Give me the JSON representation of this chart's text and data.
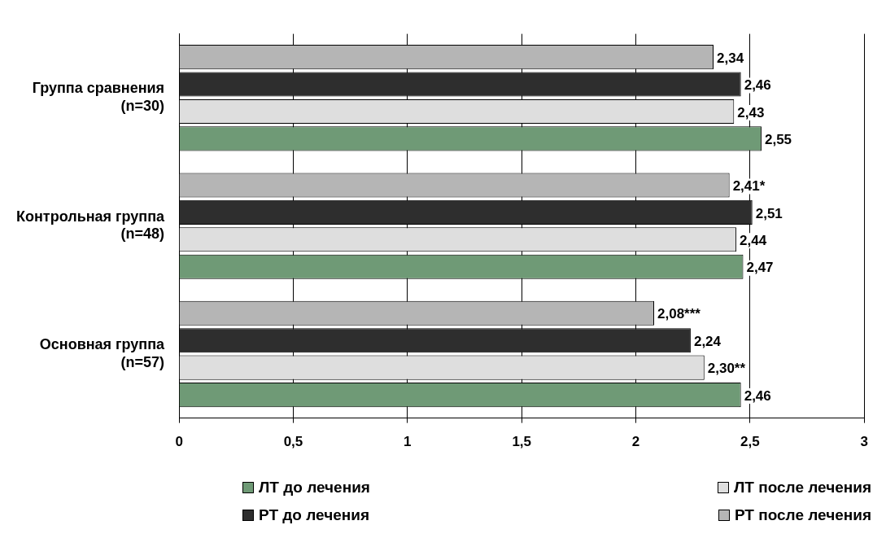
{
  "chart_data": {
    "type": "bar",
    "orientation": "horizontal",
    "categories": [
      "Группа сравнения (n=30)",
      "Контрольная группа (n=48)",
      "Основная группа (n=57)"
    ],
    "series": [
      {
        "name": "ЛТ до лечения",
        "color": "#6f9a76",
        "values": [
          2.55,
          2.47,
          2.46
        ],
        "value_labels": [
          "2,55",
          "2,47",
          "2,46"
        ]
      },
      {
        "name": "ЛТ после лечения",
        "color": "#dedede",
        "values": [
          2.43,
          2.44,
          2.3
        ],
        "value_labels": [
          "2,43",
          "2,44",
          "2,30**"
        ]
      },
      {
        "name": "РТ до лечения",
        "color": "#2e2e2e",
        "values": [
          2.46,
          2.51,
          2.24
        ],
        "value_labels": [
          "2,46",
          "2,51",
          "2,24"
        ]
      },
      {
        "name": "РТ после лечения",
        "color": "#b5b5b5",
        "values": [
          2.34,
          2.41,
          2.08
        ],
        "value_labels": [
          "2,34",
          "2,41*",
          "2,08***"
        ]
      }
    ],
    "xlim": [
      0,
      3
    ],
    "xticks": [
      0,
      {
        "value": 0.5,
        "label": "0,5"
      },
      1,
      {
        "value": 1.5,
        "label": "1,5"
      },
      2,
      {
        "value": 2.5,
        "label": "2,5"
      },
      3
    ],
    "grid": "x",
    "legend": "bottom"
  }
}
